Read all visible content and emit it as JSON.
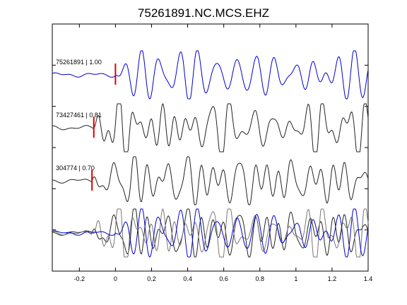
{
  "chart_data": {
    "type": "line",
    "title": "75261891.NC.MCS.EHZ",
    "xlabel": "",
    "ylabel": "",
    "xlim": [
      -0.35,
      1.4
    ],
    "xticks": [
      -0.2,
      0,
      0.2,
      0.4,
      0.6,
      0.8,
      1,
      1.2,
      1.4
    ],
    "xtick_labels": [
      "-0.2",
      "0",
      "0.2",
      "0.4",
      "0.6",
      "0.8",
      "1",
      "1.2",
      "1.4"
    ],
    "grid": false,
    "legend": "none",
    "colors": {
      "primary": "#0000cc",
      "secondary": "#222222",
      "overlay": "#777777",
      "pick": "#dd0000"
    },
    "traces": [
      {
        "label": "75261891 | 1.00",
        "event_id": "75261891",
        "cc": 1.0,
        "pick_time": 0.0,
        "color": "#0000cc"
      },
      {
        "label": "73427461 | 0.81",
        "event_id": "73427461",
        "cc": 0.81,
        "pick_time": -0.12,
        "color": "#222222"
      },
      {
        "label": "304774 | 0.70",
        "event_id": "304774",
        "cc": 0.7,
        "pick_time": -0.13,
        "color": "#222222"
      }
    ],
    "stack": {
      "description_visible": false,
      "traces_overlaid": 3
    }
  }
}
